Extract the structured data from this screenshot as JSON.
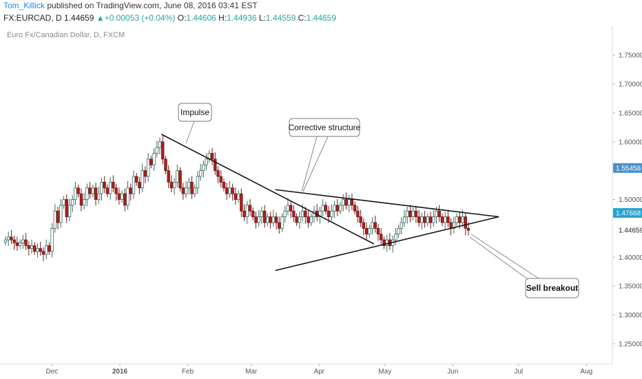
{
  "header": {
    "user": "Tom_Killick",
    "published": " published on TradingView.com, June 08, 2016 03:41 EST",
    "symbol": "FX:EURCAD, D",
    "last": "1.44659",
    "change": "+0.00053 (+0.04%)",
    "o_label": "O:",
    "o_value": "1.44606",
    "h_label": "H:",
    "h_value": "1.44936",
    "l_label": "L:",
    "l_value": "1.44559",
    "c_label": "C:",
    "c_value": "1.44659"
  },
  "colors": {
    "up": "#26a69a",
    "down": "#b71c1c",
    "accent": "#1e88e5",
    "badge_blue": "#4a90c8",
    "badge_cyan": "#26a3cf"
  },
  "chart_data": {
    "type": "candlestick",
    "subtitle": "Euro Fx/Canadian Dollar, D, FXCM",
    "y_ticks": [
      "1.75000",
      "1.70000",
      "1.65000",
      "1.60000",
      "1.50000",
      "1.40000",
      "1.35000",
      "1.30000",
      "1.25000"
    ],
    "ylim": [
      1.22,
      1.79
    ],
    "x_ticks": [
      "Dec",
      "2016",
      "Feb",
      "Mar",
      "Apr",
      "May",
      "Jun",
      "Jul",
      "Aug"
    ],
    "price_badges": [
      {
        "value": 1.55458,
        "label": "1.55458",
        "style": "blue"
      },
      {
        "value": 1.47668,
        "label": "1.47668",
        "style": "cyan"
      },
      {
        "value": 1.44659,
        "label": "1.44659",
        "style": "plain"
      }
    ],
    "grid": false,
    "close_path": [
      1.43,
      1.435,
      1.43,
      1.425,
      1.42,
      1.425,
      1.43,
      1.42,
      1.415,
      1.42,
      1.41,
      1.415,
      1.41,
      1.405,
      1.42,
      1.41,
      1.45,
      1.48,
      1.46,
      1.49,
      1.5,
      1.47,
      1.49,
      1.5,
      1.52,
      1.51,
      1.49,
      1.5,
      1.52,
      1.51,
      1.52,
      1.5,
      1.51,
      1.53,
      1.52,
      1.51,
      1.53,
      1.52,
      1.51,
      1.5,
      1.51,
      1.49,
      1.52,
      1.51,
      1.54,
      1.53,
      1.52,
      1.55,
      1.54,
      1.57,
      1.56,
      1.58,
      1.59,
      1.6,
      1.57,
      1.55,
      1.53,
      1.52,
      1.53,
      1.55,
      1.52,
      1.51,
      1.52,
      1.53,
      1.51,
      1.52,
      1.54,
      1.55,
      1.56,
      1.57,
      1.58,
      1.57,
      1.55,
      1.54,
      1.53,
      1.52,
      1.51,
      1.52,
      1.51,
      1.5,
      1.51,
      1.48,
      1.47,
      1.49,
      1.48,
      1.47,
      1.46,
      1.47,
      1.48,
      1.46,
      1.47,
      1.46,
      1.47,
      1.46,
      1.45,
      1.47,
      1.48,
      1.49,
      1.48,
      1.47,
      1.46,
      1.47,
      1.48,
      1.47,
      1.46,
      1.47,
      1.48,
      1.47,
      1.48,
      1.49,
      1.48,
      1.47,
      1.48,
      1.49,
      1.48,
      1.49,
      1.5,
      1.49,
      1.5,
      1.49,
      1.48,
      1.47,
      1.46,
      1.45,
      1.44,
      1.45,
      1.46,
      1.45,
      1.44,
      1.43,
      1.42,
      1.43,
      1.42,
      1.43,
      1.44,
      1.45,
      1.46,
      1.47,
      1.48,
      1.47,
      1.48,
      1.47,
      1.46,
      1.47,
      1.46,
      1.47,
      1.46,
      1.47,
      1.48,
      1.47,
      1.46,
      1.47,
      1.46,
      1.45,
      1.46,
      1.47,
      1.46,
      1.47,
      1.45,
      1.44659
    ],
    "trendlines": [
      {
        "from": [
          "2016-01-20",
          1.613
        ],
        "to": [
          "2016-04-26",
          1.423
        ]
      },
      {
        "from": [
          "2016-03-12",
          1.517
        ],
        "to": [
          "2016-06-22",
          1.47
        ]
      },
      {
        "from": [
          "2016-03-12",
          1.377
        ],
        "to": [
          "2016-06-22",
          1.47
        ]
      }
    ],
    "annotations": [
      {
        "text": "Impulse",
        "bold": false
      },
      {
        "text": "Corrective structure",
        "bold": false
      },
      {
        "text": "Sell breakout",
        "bold": true
      }
    ]
  }
}
